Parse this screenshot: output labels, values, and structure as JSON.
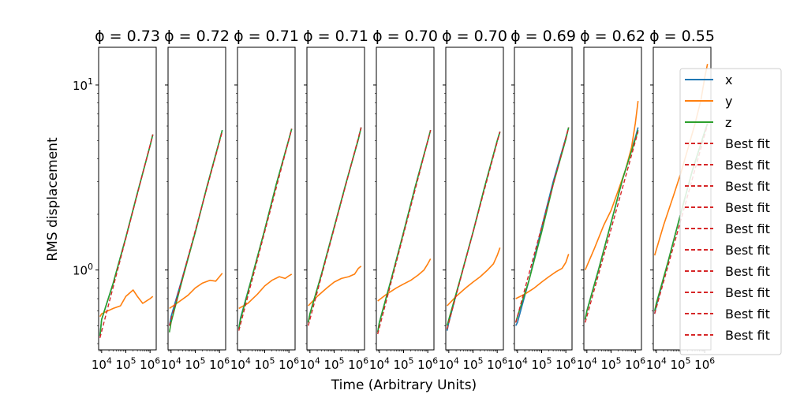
{
  "chart_data": {
    "type": "line",
    "xlabel": "Time (Arbitrary Units)",
    "ylabel": "RMS displacement",
    "x_scale": "log",
    "y_scale": "log",
    "xlim": [
      7500,
      1800000
    ],
    "ylim": [
      0.37,
      16
    ],
    "x_ticks": [
      {
        "value": 10000,
        "base": "10",
        "exp": "4"
      },
      {
        "value": 100000,
        "base": "10",
        "exp": "5"
      },
      {
        "value": 1000000,
        "base": "10",
        "exp": "6"
      }
    ],
    "y_ticks": [
      {
        "value": 1,
        "base": "10",
        "exp": "0"
      },
      {
        "value": 10,
        "base": "10",
        "exp": "1"
      }
    ],
    "grid": false,
    "legend_position": "right",
    "legend": [
      {
        "label": "x",
        "color": "#1f77b4",
        "style": "solid"
      },
      {
        "label": "y",
        "color": "#ff7f0e",
        "style": "solid"
      },
      {
        "label": "z",
        "color": "#2ca02c",
        "style": "solid"
      },
      {
        "label": "Best fit",
        "color": "#d62728",
        "style": "dashed"
      },
      {
        "label": "Best fit",
        "color": "#d62728",
        "style": "dashed"
      },
      {
        "label": "Best fit",
        "color": "#d62728",
        "style": "dashed"
      },
      {
        "label": "Best fit",
        "color": "#d62728",
        "style": "dashed"
      },
      {
        "label": "Best fit",
        "color": "#d62728",
        "style": "dashed"
      },
      {
        "label": "Best fit",
        "color": "#d62728",
        "style": "dashed"
      },
      {
        "label": "Best fit",
        "color": "#d62728",
        "style": "dashed"
      },
      {
        "label": "Best fit",
        "color": "#d62728",
        "style": "dashed"
      },
      {
        "label": "Best fit",
        "color": "#d62728",
        "style": "dashed"
      },
      {
        "label": "Best fit",
        "color": "#d62728",
        "style": "dashed"
      }
    ],
    "panels": [
      {
        "title": "ϕ = 0.73",
        "x": {
          "x": [
            8500,
            10000,
            30000,
            100000,
            300000,
            1000000,
            1300000
          ],
          "y": [
            0.44,
            0.54,
            0.85,
            1.5,
            2.6,
            4.7,
            5.4
          ]
        },
        "y": {
          "x": [
            8500,
            10000,
            30000,
            60000,
            100000,
            200000,
            300000,
            500000,
            1000000,
            1300000
          ],
          "y": [
            0.56,
            0.58,
            0.62,
            0.64,
            0.72,
            0.78,
            0.72,
            0.66,
            0.7,
            0.72
          ]
        },
        "z": {
          "x": [
            8500,
            10000,
            30000,
            100000,
            300000,
            1000000,
            1300000
          ],
          "y": [
            0.44,
            0.54,
            0.85,
            1.5,
            2.6,
            4.7,
            5.4
          ]
        },
        "fit": {
          "x": [
            8500,
            1300000
          ],
          "y": [
            0.43,
            5.4
          ]
        }
      },
      {
        "title": "ϕ = 0.72",
        "x": {
          "x": [
            8500,
            10000,
            30000,
            100000,
            300000,
            1000000,
            1300000
          ],
          "y": [
            0.5,
            0.56,
            0.92,
            1.6,
            2.8,
            5.0,
            5.7
          ]
        },
        "y": {
          "x": [
            8500,
            20000,
            50000,
            100000,
            200000,
            400000,
            700000,
            1000000,
            1300000
          ],
          "y": [
            0.62,
            0.67,
            0.73,
            0.8,
            0.85,
            0.88,
            0.87,
            0.92,
            0.96
          ]
        },
        "z": {
          "x": [
            8500,
            10000,
            30000,
            100000,
            300000,
            1000000,
            1300000
          ],
          "y": [
            0.46,
            0.52,
            0.9,
            1.6,
            2.8,
            5.0,
            5.7
          ]
        },
        "fit": {
          "x": [
            8500,
            1300000
          ],
          "y": [
            0.5,
            5.6
          ]
        }
      },
      {
        "title": "ϕ = 0.71",
        "x": {
          "x": [
            8500,
            10000,
            30000,
            100000,
            300000,
            1000000,
            1300000
          ],
          "y": [
            0.48,
            0.55,
            0.92,
            1.65,
            2.9,
            5.1,
            5.8
          ]
        },
        "y": {
          "x": [
            8500,
            20000,
            50000,
            100000,
            200000,
            400000,
            700000,
            1000000,
            1300000
          ],
          "y": [
            0.62,
            0.66,
            0.74,
            0.82,
            0.88,
            0.92,
            0.9,
            0.93,
            0.95
          ]
        },
        "z": {
          "x": [
            8500,
            10000,
            30000,
            100000,
            300000,
            1000000,
            1300000
          ],
          "y": [
            0.48,
            0.54,
            0.92,
            1.65,
            2.9,
            5.1,
            5.8
          ]
        },
        "fit": {
          "x": [
            8500,
            1300000
          ],
          "y": [
            0.47,
            5.8
          ]
        }
      },
      {
        "title": "ϕ = 0.71",
        "x": {
          "x": [
            8500,
            10000,
            30000,
            100000,
            300000,
            1000000,
            1300000
          ],
          "y": [
            0.52,
            0.58,
            0.95,
            1.7,
            2.9,
            5.1,
            5.9
          ]
        },
        "y": {
          "x": [
            8500,
            20000,
            50000,
            100000,
            200000,
            400000,
            700000,
            1000000,
            1300000
          ],
          "y": [
            0.64,
            0.72,
            0.8,
            0.86,
            0.9,
            0.92,
            0.95,
            1.02,
            1.05
          ]
        },
        "z": {
          "x": [
            8500,
            10000,
            30000,
            100000,
            300000,
            1000000,
            1300000
          ],
          "y": [
            0.52,
            0.58,
            0.95,
            1.7,
            2.9,
            5.1,
            5.9
          ]
        },
        "fit": {
          "x": [
            8500,
            1300000
          ],
          "y": [
            0.5,
            5.9
          ]
        }
      },
      {
        "title": "ϕ = 0.70",
        "x": {
          "x": [
            8500,
            10000,
            30000,
            100000,
            300000,
            1000000,
            1300000
          ],
          "y": [
            0.46,
            0.52,
            0.88,
            1.6,
            2.8,
            5.0,
            5.7
          ]
        },
        "y": {
          "x": [
            8500,
            20000,
            50000,
            100000,
            200000,
            400000,
            700000,
            1000000,
            1300000
          ],
          "y": [
            0.68,
            0.74,
            0.8,
            0.84,
            0.88,
            0.94,
            1.0,
            1.08,
            1.15
          ]
        },
        "z": {
          "x": [
            8500,
            10000,
            30000,
            100000,
            300000,
            1000000,
            1300000
          ],
          "y": [
            0.46,
            0.52,
            0.88,
            1.6,
            2.8,
            5.0,
            5.7
          ]
        },
        "fit": {
          "x": [
            8500,
            1300000
          ],
          "y": [
            0.45,
            5.7
          ]
        }
      },
      {
        "title": "ϕ = 0.70",
        "x": {
          "x": [
            8500,
            10000,
            30000,
            100000,
            300000,
            1000000,
            1300000
          ],
          "y": [
            0.47,
            0.52,
            0.9,
            1.6,
            2.8,
            5.0,
            5.6
          ]
        },
        "y": {
          "x": [
            8500,
            20000,
            50000,
            100000,
            200000,
            400000,
            700000,
            1000000,
            1300000
          ],
          "y": [
            0.64,
            0.72,
            0.8,
            0.86,
            0.92,
            1.0,
            1.08,
            1.2,
            1.32
          ]
        },
        "z": {
          "x": [
            8500,
            10000,
            30000,
            100000,
            300000,
            1000000,
            1300000
          ],
          "y": [
            0.5,
            0.54,
            0.9,
            1.6,
            2.8,
            5.0,
            5.6
          ]
        },
        "fit": {
          "x": [
            8500,
            1300000
          ],
          "y": [
            0.48,
            5.6
          ]
        }
      },
      {
        "title": "ϕ = 0.69",
        "x": {
          "x": [
            8500,
            10000,
            30000,
            100000,
            300000,
            1000000,
            1300000
          ],
          "y": [
            0.5,
            0.52,
            0.88,
            1.7,
            3.0,
            5.2,
            5.9
          ]
        },
        "y": {
          "x": [
            8500,
            20000,
            50000,
            100000,
            200000,
            400000,
            700000,
            1000000,
            1300000
          ],
          "y": [
            0.7,
            0.74,
            0.8,
            0.86,
            0.92,
            0.98,
            1.02,
            1.1,
            1.22
          ]
        },
        "z": {
          "x": [
            8500,
            10000,
            30000,
            100000,
            300000,
            1000000,
            1300000
          ],
          "y": [
            0.52,
            0.56,
            0.88,
            1.6,
            2.9,
            5.1,
            5.9
          ]
        },
        "fit": {
          "x": [
            8500,
            1300000
          ],
          "y": [
            0.52,
            5.9
          ]
        }
      },
      {
        "title": "ϕ = 0.62",
        "x": {
          "x": [
            8500,
            10000,
            30000,
            100000,
            300000,
            1000000,
            1300000
          ],
          "y": [
            0.54,
            0.6,
            1.0,
            1.8,
            3.1,
            5.2,
            5.9
          ]
        },
        "y": {
          "x": [
            8500,
            20000,
            50000,
            100000,
            200000,
            400000,
            700000,
            1000000,
            1300000
          ],
          "y": [
            1.0,
            1.3,
            1.75,
            2.1,
            2.7,
            3.5,
            4.6,
            6.2,
            8.2
          ]
        },
        "z": {
          "x": [
            8500,
            10000,
            30000,
            100000,
            300000,
            1000000,
            1300000
          ],
          "y": [
            0.54,
            0.6,
            1.0,
            1.8,
            3.1,
            5.1,
            5.7
          ]
        },
        "fit": {
          "x": [
            8500,
            1300000
          ],
          "y": [
            0.52,
            5.6
          ]
        }
      },
      {
        "title": "ϕ = 0.55",
        "x": {
          "x": [
            8500,
            10000,
            30000,
            100000,
            300000,
            1000000,
            1300000
          ],
          "y": [
            0.58,
            0.64,
            1.1,
            2.0,
            3.4,
            5.6,
            6.2
          ]
        },
        "y": {
          "x": [
            8500,
            20000,
            50000,
            100000,
            200000,
            400000,
            700000,
            1000000,
            1300000
          ],
          "y": [
            1.2,
            1.75,
            2.5,
            3.3,
            4.5,
            6.2,
            8.3,
            11.0,
            13.0
          ]
        },
        "z": {
          "x": [
            8500,
            10000,
            30000,
            100000,
            300000,
            1000000,
            1300000
          ],
          "y": [
            0.6,
            0.66,
            1.1,
            2.0,
            3.4,
            5.6,
            6.2
          ]
        },
        "fit": {
          "x": [
            8500,
            1300000
          ],
          "y": [
            0.58,
            6.1
          ]
        }
      }
    ]
  }
}
